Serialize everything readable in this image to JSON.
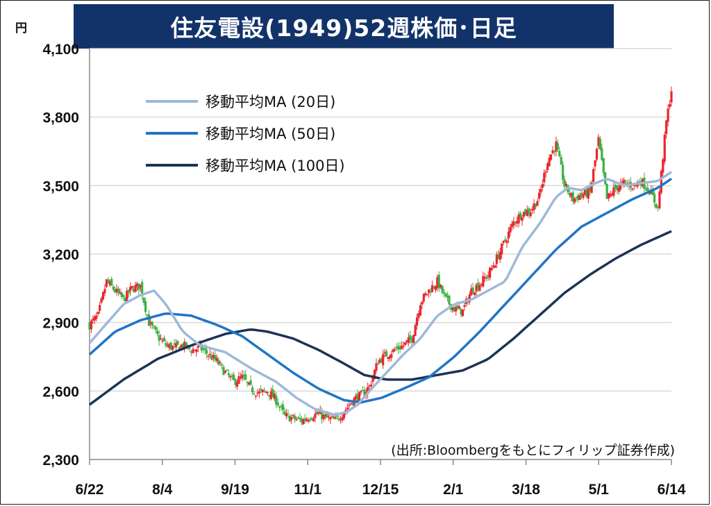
{
  "title": "住友電設(1949)52週株価･日足",
  "unit_label": "円",
  "source": "(出所:Bloombergをもとにフィリップ証券作成)",
  "colors": {
    "title_bg": "#12336a",
    "up": "#e8262c",
    "down": "#3cb043",
    "ma20": "#9fb8d9",
    "ma50": "#1f74c6",
    "ma100": "#1b3355",
    "grid": "#d9d9d9"
  },
  "chart_data": {
    "type": "candlestick",
    "ylim": [
      2300,
      4100
    ],
    "yticks": [
      "2,300",
      "2,600",
      "2,900",
      "3,200",
      "3,500",
      "3,800",
      "4,100"
    ],
    "ytick_values": [
      2300,
      2600,
      2900,
      3200,
      3500,
      3800,
      4100
    ],
    "xticks": [
      "6/22",
      "8/4",
      "9/19",
      "11/1",
      "12/15",
      "2/1",
      "3/18",
      "5/1",
      "6/14"
    ],
    "legend": [
      {
        "label": "移動平均MA (20日)",
        "key": "ma20"
      },
      {
        "label": "移動平均MA (50日)",
        "key": "ma50"
      },
      {
        "label": "移動平均MA (100日)",
        "key": "ma100"
      }
    ],
    "grid": "horizontal",
    "legend_position": "top-left",
    "price_anchors": [
      [
        0,
        2890
      ],
      [
        5,
        2930
      ],
      [
        10,
        3080
      ],
      [
        15,
        3040
      ],
      [
        20,
        3000
      ],
      [
        25,
        3050
      ],
      [
        30,
        3060
      ],
      [
        35,
        2900
      ],
      [
        40,
        2840
      ],
      [
        45,
        2800
      ],
      [
        50,
        2790
      ],
      [
        55,
        2800
      ],
      [
        60,
        2780
      ],
      [
        65,
        2790
      ],
      [
        70,
        2760
      ],
      [
        75,
        2730
      ],
      [
        80,
        2680
      ],
      [
        85,
        2640
      ],
      [
        90,
        2660
      ],
      [
        95,
        2610
      ],
      [
        100,
        2590
      ],
      [
        105,
        2600
      ],
      [
        110,
        2560
      ],
      [
        115,
        2490
      ],
      [
        120,
        2480
      ],
      [
        125,
        2470
      ],
      [
        130,
        2490
      ],
      [
        135,
        2500
      ],
      [
        140,
        2480
      ],
      [
        145,
        2470
      ],
      [
        150,
        2510
      ],
      [
        155,
        2560
      ],
      [
        160,
        2580
      ],
      [
        165,
        2620
      ],
      [
        170,
        2730
      ],
      [
        175,
        2760
      ],
      [
        180,
        2780
      ],
      [
        185,
        2800
      ],
      [
        190,
        2830
      ],
      [
        195,
        2990
      ],
      [
        200,
        3040
      ],
      [
        205,
        3080
      ],
      [
        210,
        3000
      ],
      [
        215,
        2960
      ],
      [
        220,
        2950
      ],
      [
        225,
        3040
      ],
      [
        230,
        3070
      ],
      [
        235,
        3110
      ],
      [
        240,
        3180
      ],
      [
        245,
        3260
      ],
      [
        250,
        3340
      ],
      [
        255,
        3380
      ],
      [
        260,
        3390
      ],
      [
        265,
        3450
      ],
      [
        270,
        3610
      ],
      [
        275,
        3680
      ],
      [
        280,
        3500
      ],
      [
        285,
        3440
      ],
      [
        290,
        3460
      ],
      [
        295,
        3470
      ],
      [
        300,
        3700
      ],
      [
        305,
        3440
      ],
      [
        310,
        3490
      ],
      [
        315,
        3510
      ],
      [
        320,
        3500
      ],
      [
        325,
        3520
      ],
      [
        330,
        3480
      ],
      [
        335,
        3400
      ],
      [
        340,
        3780
      ],
      [
        343,
        3920
      ]
    ],
    "ma20_anchors": [
      [
        0,
        2810
      ],
      [
        20,
        2980
      ],
      [
        30,
        3020
      ],
      [
        38,
        3040
      ],
      [
        45,
        2980
      ],
      [
        55,
        2860
      ],
      [
        65,
        2800
      ],
      [
        80,
        2770
      ],
      [
        95,
        2700
      ],
      [
        110,
        2640
      ],
      [
        122,
        2570
      ],
      [
        133,
        2520
      ],
      [
        145,
        2495
      ],
      [
        152,
        2510
      ],
      [
        158,
        2540
      ],
      [
        165,
        2600
      ],
      [
        175,
        2680
      ],
      [
        185,
        2760
      ],
      [
        195,
        2830
      ],
      [
        205,
        2930
      ],
      [
        215,
        2980
      ],
      [
        225,
        3000
      ],
      [
        235,
        3040
      ],
      [
        245,
        3080
      ],
      [
        255,
        3230
      ],
      [
        265,
        3330
      ],
      [
        275,
        3450
      ],
      [
        282,
        3490
      ],
      [
        290,
        3480
      ],
      [
        298,
        3510
      ],
      [
        305,
        3530
      ],
      [
        315,
        3500
      ],
      [
        325,
        3510
      ],
      [
        335,
        3520
      ],
      [
        343,
        3560
      ]
    ],
    "ma50_anchors": [
      [
        0,
        2760
      ],
      [
        15,
        2860
      ],
      [
        30,
        2910
      ],
      [
        45,
        2940
      ],
      [
        60,
        2930
      ],
      [
        75,
        2890
      ],
      [
        90,
        2840
      ],
      [
        105,
        2760
      ],
      [
        120,
        2680
      ],
      [
        135,
        2610
      ],
      [
        150,
        2560
      ],
      [
        160,
        2550
      ],
      [
        172,
        2570
      ],
      [
        185,
        2610
      ],
      [
        200,
        2660
      ],
      [
        215,
        2750
      ],
      [
        230,
        2860
      ],
      [
        245,
        2980
      ],
      [
        260,
        3100
      ],
      [
        275,
        3220
      ],
      [
        290,
        3320
      ],
      [
        305,
        3380
      ],
      [
        320,
        3440
      ],
      [
        335,
        3490
      ],
      [
        343,
        3530
      ]
    ],
    "ma100_anchors": [
      [
        0,
        2540
      ],
      [
        20,
        2650
      ],
      [
        40,
        2740
      ],
      [
        60,
        2800
      ],
      [
        80,
        2850
      ],
      [
        95,
        2870
      ],
      [
        105,
        2860
      ],
      [
        120,
        2830
      ],
      [
        135,
        2780
      ],
      [
        150,
        2720
      ],
      [
        162,
        2670
      ],
      [
        175,
        2650
      ],
      [
        190,
        2650
      ],
      [
        205,
        2670
      ],
      [
        220,
        2690
      ],
      [
        235,
        2740
      ],
      [
        250,
        2830
      ],
      [
        265,
        2930
      ],
      [
        280,
        3030
      ],
      [
        295,
        3110
      ],
      [
        310,
        3180
      ],
      [
        325,
        3240
      ],
      [
        343,
        3300
      ]
    ],
    "n_days": 344
  }
}
